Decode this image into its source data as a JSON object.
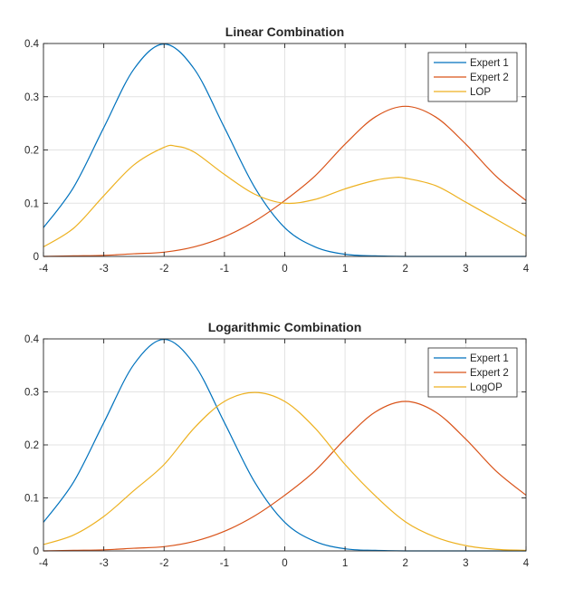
{
  "chart_data": [
    {
      "type": "line",
      "title": "Linear Combination",
      "xlim": [
        -4,
        4
      ],
      "ylim": [
        0,
        0.4
      ],
      "xticks": [
        "-4",
        "-3",
        "-2",
        "-1",
        "0",
        "1",
        "2",
        "3",
        "4"
      ],
      "yticks": [
        "0",
        "0.1",
        "0.2",
        "0.3",
        "0.4"
      ],
      "grid": true,
      "legend_position": "top-right",
      "series": [
        {
          "name": "Expert 1",
          "color": "#0072BD",
          "x": [
            -4,
            -3.5,
            -3,
            -2.5,
            -2,
            -1.5,
            -1,
            -0.5,
            0,
            0.5,
            1,
            1.5,
            2,
            2.5,
            3,
            3.5,
            4
          ],
          "y": [
            0.054,
            0.13,
            0.242,
            0.352,
            0.399,
            0.352,
            0.242,
            0.13,
            0.054,
            0.018,
            0.004,
            0.001,
            0.0,
            0.0,
            0.0,
            0.0,
            0.0
          ]
        },
        {
          "name": "Expert 2",
          "color": "#D95319",
          "x": [
            -4,
            -3.5,
            -3,
            -2.5,
            -2,
            -1.5,
            -1,
            -0.5,
            0,
            0.5,
            1,
            1.5,
            2,
            2.5,
            3,
            3.5,
            4
          ],
          "y": [
            0.0,
            0.001,
            0.002,
            0.005,
            0.008,
            0.018,
            0.037,
            0.066,
            0.105,
            0.151,
            0.211,
            0.262,
            0.282,
            0.262,
            0.211,
            0.151,
            0.105
          ]
        },
        {
          "name": "LOP",
          "color": "#EDB120",
          "x": [
            -4,
            -3.5,
            -3,
            -2.5,
            -2,
            -1.8,
            -1.5,
            -1,
            -0.5,
            0,
            0.5,
            1,
            1.5,
            1.8,
            2,
            2.5,
            3,
            3.5,
            4
          ],
          "y": [
            0.018,
            0.053,
            0.114,
            0.172,
            0.205,
            0.207,
            0.196,
            0.154,
            0.117,
            0.1,
            0.107,
            0.127,
            0.143,
            0.148,
            0.147,
            0.133,
            0.102,
            0.07,
            0.038
          ]
        }
      ]
    },
    {
      "type": "line",
      "title": "Logarithmic Combination",
      "xlim": [
        -4,
        4
      ],
      "ylim": [
        0,
        0.4
      ],
      "xticks": [
        "-4",
        "-3",
        "-2",
        "-1",
        "0",
        "1",
        "2",
        "3",
        "4"
      ],
      "yticks": [
        "0",
        "0.1",
        "0.2",
        "0.3",
        "0.4"
      ],
      "grid": true,
      "legend_position": "top-right",
      "series": [
        {
          "name": "Expert 1",
          "color": "#0072BD",
          "x": [
            -4,
            -3.5,
            -3,
            -2.5,
            -2,
            -1.5,
            -1,
            -0.5,
            0,
            0.5,
            1,
            1.5,
            2,
            2.5,
            3,
            3.5,
            4
          ],
          "y": [
            0.054,
            0.13,
            0.242,
            0.352,
            0.399,
            0.352,
            0.242,
            0.13,
            0.054,
            0.018,
            0.004,
            0.001,
            0.0,
            0.0,
            0.0,
            0.0,
            0.0
          ]
        },
        {
          "name": "Expert 2",
          "color": "#D95319",
          "x": [
            -4,
            -3.5,
            -3,
            -2.5,
            -2,
            -1.5,
            -1,
            -0.5,
            0,
            0.5,
            1,
            1.5,
            2,
            2.5,
            3,
            3.5,
            4
          ],
          "y": [
            0.0,
            0.001,
            0.002,
            0.005,
            0.008,
            0.018,
            0.037,
            0.066,
            0.105,
            0.151,
            0.211,
            0.262,
            0.282,
            0.262,
            0.211,
            0.151,
            0.105
          ]
        },
        {
          "name": "LogOP",
          "color": "#EDB120",
          "x": [
            -4,
            -3.5,
            -3,
            -2.5,
            -2,
            -1.5,
            -1,
            -0.5,
            0,
            0.5,
            1,
            1.5,
            2,
            2.5,
            3,
            3.5,
            4
          ],
          "y": [
            0.012,
            0.03,
            0.065,
            0.114,
            0.163,
            0.232,
            0.282,
            0.299,
            0.282,
            0.232,
            0.163,
            0.104,
            0.055,
            0.026,
            0.01,
            0.003,
            0.001
          ]
        }
      ]
    }
  ]
}
